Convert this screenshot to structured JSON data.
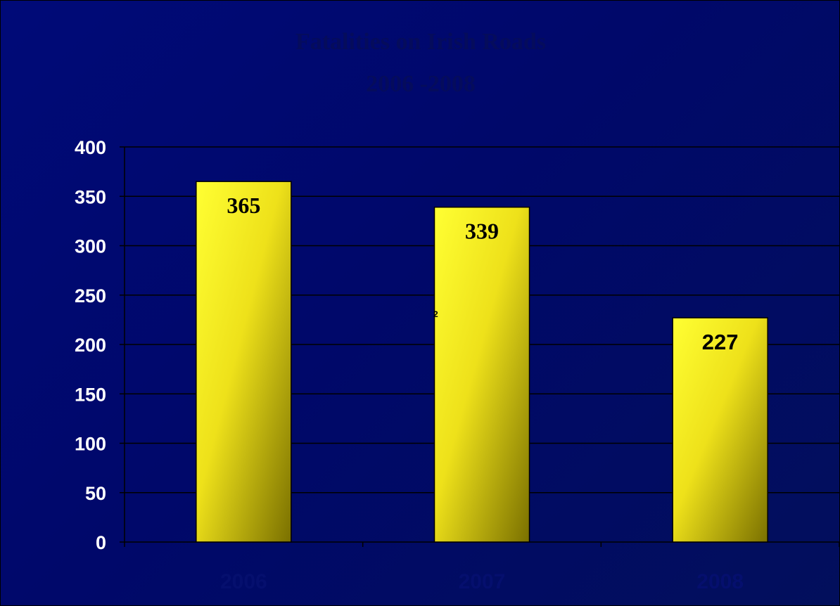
{
  "chart_data": {
    "type": "bar",
    "title": "Fatalities on Irish Roads",
    "subtitle": "2006 -2008",
    "categories": [
      "2006",
      "2007",
      "2008"
    ],
    "values": [
      365,
      339,
      227
    ],
    "data_labels": [
      "365",
      "339",
      "227"
    ],
    "stray_annotation": "2",
    "xlabel": "",
    "ylabel": "",
    "ylim": [
      0,
      400
    ],
    "yticks": [
      0,
      50,
      100,
      150,
      200,
      250,
      300,
      350,
      400
    ],
    "grid": true,
    "legend": "none",
    "colors": {
      "background": "#000a78",
      "bar_light": "#ffff33",
      "bar_dark": "#7a7000",
      "gridline": "#000000",
      "title_text": "#050c5c",
      "ytick_text": "#ffffff",
      "xtick_text": "#050f6e"
    }
  }
}
